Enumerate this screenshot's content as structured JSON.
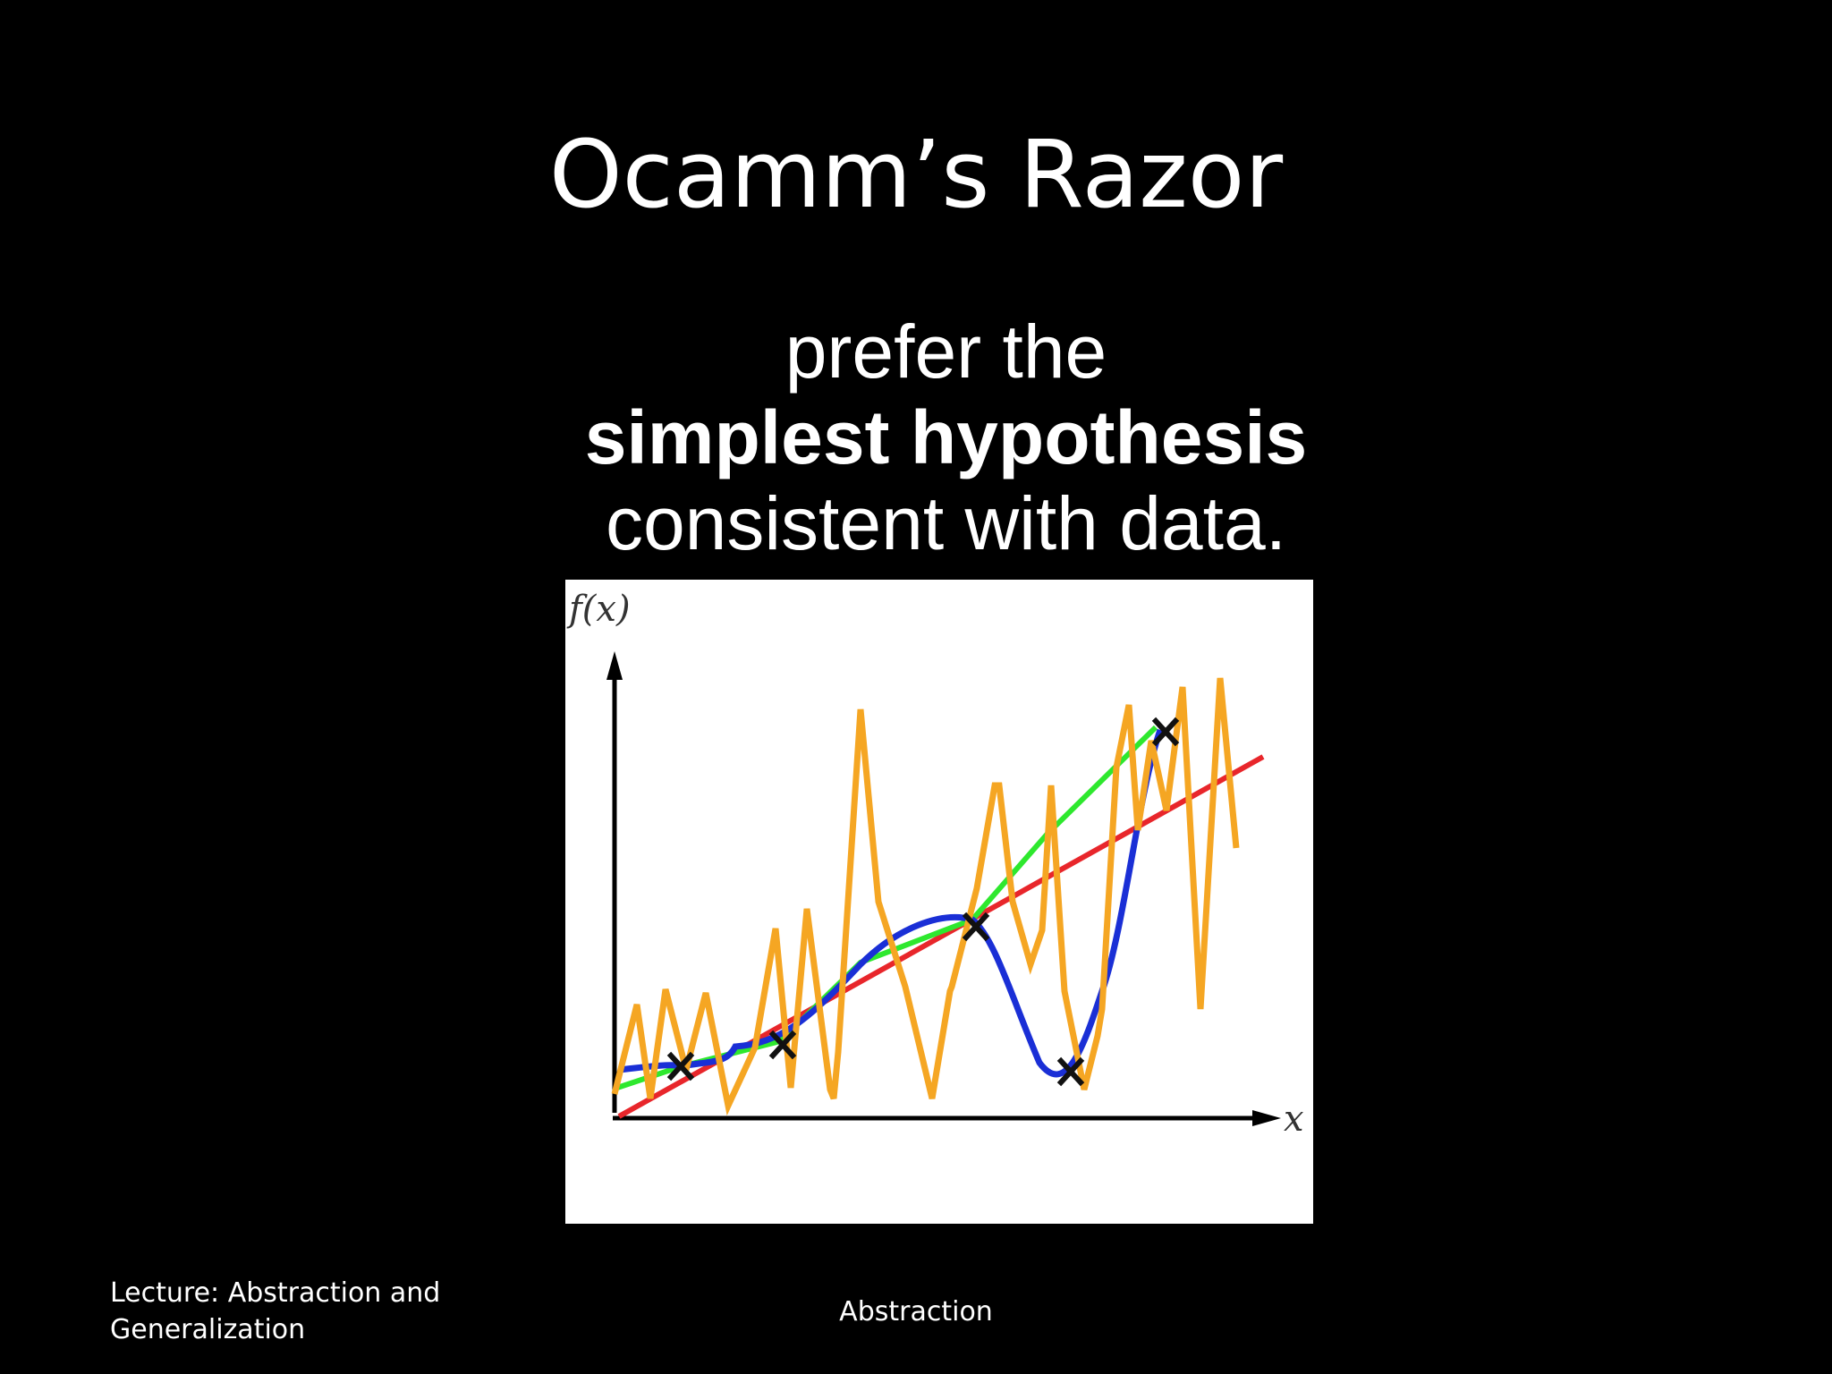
{
  "slide": {
    "title": "Ocamm’s Razor",
    "subtitle": {
      "line1": "prefer the",
      "line2": "simplest hypothesis",
      "line3": "consistent with data."
    }
  },
  "figure": {
    "y_axis_label": "f(x)",
    "x_axis_label": "x",
    "colors": {
      "red_line": "#e8262b",
      "green_line": "#2ee82e",
      "blue_curve": "#1a2fd6",
      "orange_zigzag": "#f5a623",
      "axes": "#000000"
    }
  },
  "footer": {
    "left_line1": "Lecture: Abstraction and",
    "left_line2": "Generalization",
    "center": "Abstraction"
  }
}
